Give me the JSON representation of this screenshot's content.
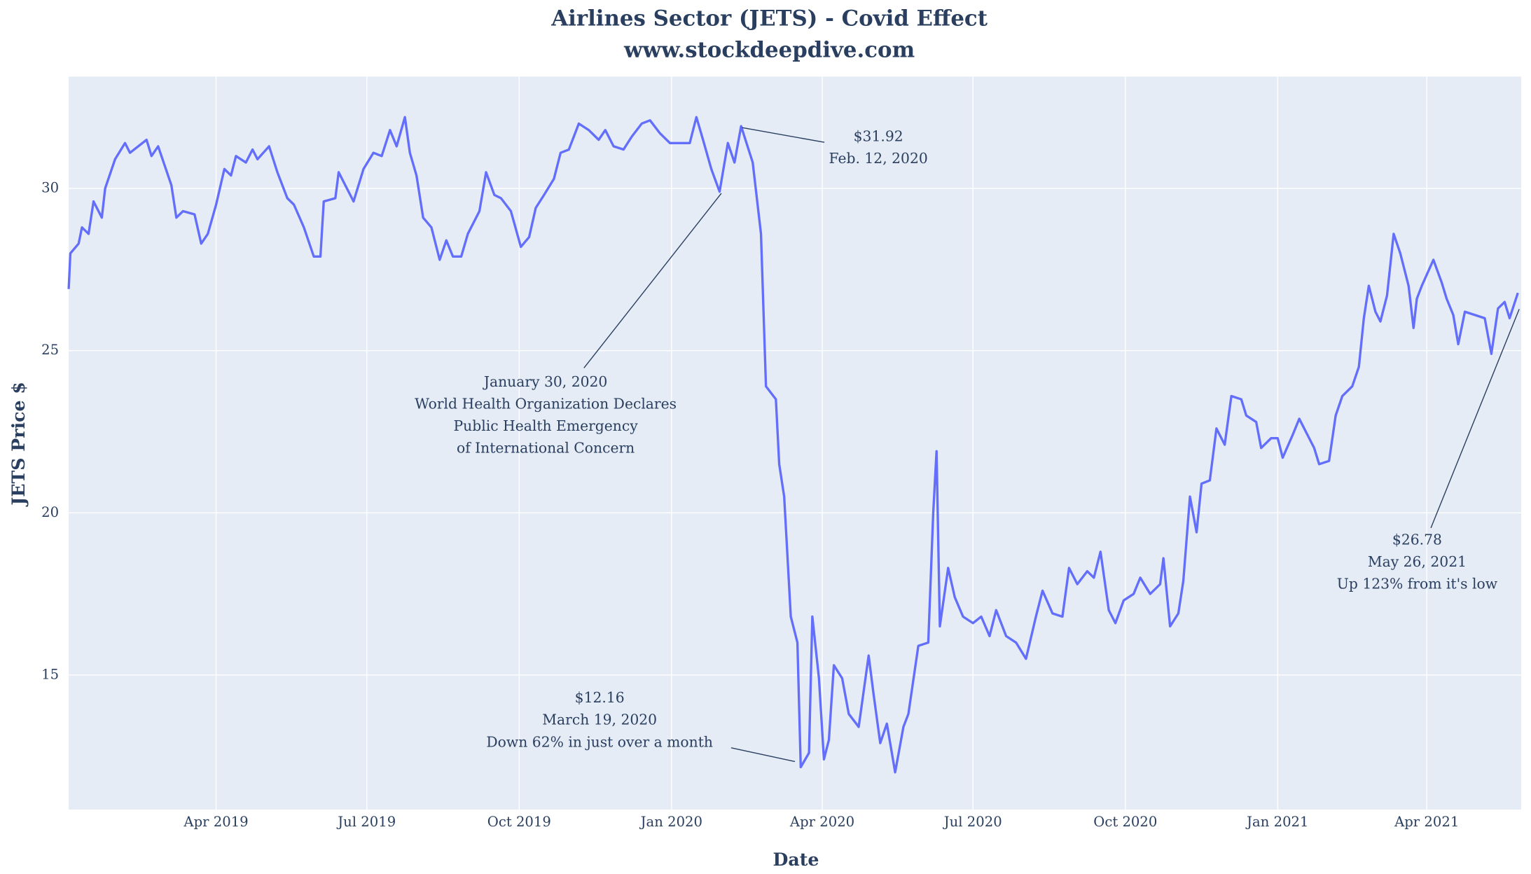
{
  "chart_data": {
    "type": "line",
    "title": [
      "Airlines Sector (JETS) - Covid Effect",
      "www.stockdeepdive.com"
    ],
    "x_label": "Date",
    "y_label": "JETS Price $",
    "color": "#636efa",
    "grid": true,
    "xlim": [
      "2019-01-02",
      "2021-05-28"
    ],
    "xticks": [
      {
        "value": "2019-04-01",
        "label": "Apr 2019"
      },
      {
        "value": "2019-07-01",
        "label": "Jul 2019"
      },
      {
        "value": "2019-10-01",
        "label": "Oct 2019"
      },
      {
        "value": "2020-01-01",
        "label": "Jan 2020"
      },
      {
        "value": "2020-04-01",
        "label": "Apr 2020"
      },
      {
        "value": "2020-07-01",
        "label": "Jul 2020"
      },
      {
        "value": "2020-10-01",
        "label": "Oct 2020"
      },
      {
        "value": "2021-01-01",
        "label": "Jan 2021"
      },
      {
        "value": "2021-04-01",
        "label": "Apr 2021"
      }
    ],
    "ylim": [
      10.85,
      33.45
    ],
    "yticks": [
      15,
      20,
      25,
      30
    ],
    "x": [
      "2019-01-02",
      "2019-01-03",
      "2019-01-08",
      "2019-01-10",
      "2019-01-14",
      "2019-01-17",
      "2019-01-22",
      "2019-01-24",
      "2019-01-30",
      "2019-02-05",
      "2019-02-08",
      "2019-02-18",
      "2019-02-21",
      "2019-02-25",
      "2019-03-05",
      "2019-03-08",
      "2019-03-12",
      "2019-03-19",
      "2019-03-23",
      "2019-03-27",
      "2019-04-01",
      "2019-04-06",
      "2019-04-10",
      "2019-04-13",
      "2019-04-19",
      "2019-04-23",
      "2019-04-26",
      "2019-05-03",
      "2019-05-08",
      "2019-05-14",
      "2019-05-18",
      "2019-05-24",
      "2019-05-30",
      "2019-06-03",
      "2019-06-05",
      "2019-06-12",
      "2019-06-14",
      "2019-06-18",
      "2019-06-23",
      "2019-06-29",
      "2019-07-05",
      "2019-07-10",
      "2019-07-15",
      "2019-07-19",
      "2019-07-24",
      "2019-07-27",
      "2019-07-31",
      "2019-08-04",
      "2019-08-09",
      "2019-08-14",
      "2019-08-18",
      "2019-08-22",
      "2019-08-27",
      "2019-08-31",
      "2019-09-07",
      "2019-09-11",
      "2019-09-16",
      "2019-09-20",
      "2019-09-26",
      "2019-10-02",
      "2019-10-07",
      "2019-10-11",
      "2019-10-16",
      "2019-10-22",
      "2019-10-26",
      "2019-10-31",
      "2019-11-06",
      "2019-11-12",
      "2019-11-18",
      "2019-11-22",
      "2019-11-27",
      "2019-12-03",
      "2019-12-08",
      "2019-12-14",
      "2019-12-19",
      "2019-12-25",
      "2019-12-31",
      "2020-01-06",
      "2020-01-12",
      "2020-01-16",
      "2020-01-20",
      "2020-01-25",
      "2020-01-30",
      "2020-02-04",
      "2020-02-08",
      "2020-02-12",
      "2020-02-19",
      "2020-02-24",
      "2020-02-27",
      "2020-03-04",
      "2020-03-06",
      "2020-03-09",
      "2020-03-13",
      "2020-03-17",
      "2020-03-19",
      "2020-03-24",
      "2020-03-26",
      "2020-03-30",
      "2020-04-02",
      "2020-04-05",
      "2020-04-08",
      "2020-04-13",
      "2020-04-17",
      "2020-04-23",
      "2020-04-29",
      "2020-05-02",
      "2020-05-06",
      "2020-05-10",
      "2020-05-15",
      "2020-05-20",
      "2020-05-23",
      "2020-05-29",
      "2020-06-04",
      "2020-06-07",
      "2020-06-09",
      "2020-06-11",
      "2020-06-16",
      "2020-06-20",
      "2020-06-25",
      "2020-07-01",
      "2020-07-06",
      "2020-07-11",
      "2020-07-15",
      "2020-07-21",
      "2020-07-27",
      "2020-08-02",
      "2020-08-08",
      "2020-08-12",
      "2020-08-18",
      "2020-08-24",
      "2020-08-28",
      "2020-09-02",
      "2020-09-08",
      "2020-09-12",
      "2020-09-16",
      "2020-09-21",
      "2020-09-25",
      "2020-09-30",
      "2020-10-06",
      "2020-10-10",
      "2020-10-16",
      "2020-10-22",
      "2020-10-24",
      "2020-10-28",
      "2020-11-02",
      "2020-11-05",
      "2020-11-09",
      "2020-11-13",
      "2020-11-16",
      "2020-11-21",
      "2020-11-25",
      "2020-11-30",
      "2020-12-04",
      "2020-12-10",
      "2020-12-13",
      "2020-12-19",
      "2020-12-22",
      "2020-12-28",
      "2021-01-01",
      "2021-01-04",
      "2021-01-10",
      "2021-01-14",
      "2021-01-18",
      "2021-01-23",
      "2021-01-26",
      "2021-02-01",
      "2021-02-05",
      "2021-02-09",
      "2021-02-15",
      "2021-02-19",
      "2021-02-22",
      "2021-02-25",
      "2021-03-01",
      "2021-03-04",
      "2021-03-08",
      "2021-03-12",
      "2021-03-16",
      "2021-03-21",
      "2021-03-24",
      "2021-03-26",
      "2021-03-29",
      "2021-04-05",
      "2021-04-10",
      "2021-04-13",
      "2021-04-17",
      "2021-04-20",
      "2021-04-24",
      "2021-04-30",
      "2021-05-06",
      "2021-05-10",
      "2021-05-14",
      "2021-05-18",
      "2021-05-21",
      "2021-05-26"
    ],
    "values": [
      26.9,
      28.0,
      28.3,
      28.8,
      28.6,
      29.6,
      29.1,
      30.0,
      30.9,
      31.4,
      31.1,
      31.5,
      31.0,
      31.3,
      30.1,
      29.1,
      29.3,
      29.2,
      28.3,
      28.6,
      29.5,
      30.6,
      30.4,
      31.0,
      30.8,
      31.2,
      30.9,
      31.3,
      30.5,
      29.7,
      29.5,
      28.8,
      27.9,
      27.9,
      29.6,
      29.7,
      30.5,
      30.1,
      29.6,
      30.6,
      31.1,
      31.0,
      31.8,
      31.3,
      32.2,
      31.1,
      30.4,
      29.1,
      28.8,
      27.8,
      28.4,
      27.9,
      27.9,
      28.6,
      29.3,
      30.5,
      29.8,
      29.7,
      29.3,
      28.2,
      28.5,
      29.4,
      29.8,
      30.3,
      31.1,
      31.2,
      32.0,
      31.8,
      31.5,
      31.8,
      31.3,
      31.2,
      31.6,
      32.0,
      32.1,
      31.7,
      31.4,
      31.4,
      31.4,
      32.2,
      31.5,
      30.6,
      29.9,
      31.4,
      30.8,
      31.92,
      30.8,
      28.6,
      23.9,
      23.5,
      21.5,
      20.5,
      16.8,
      16.0,
      12.16,
      12.6,
      16.8,
      14.9,
      12.4,
      13.0,
      15.3,
      14.9,
      13.8,
      13.4,
      15.6,
      14.4,
      12.9,
      13.5,
      12.0,
      13.4,
      13.8,
      15.9,
      16.0,
      20.0,
      21.9,
      16.5,
      18.3,
      17.4,
      16.8,
      16.6,
      16.8,
      16.2,
      17.0,
      16.2,
      16.0,
      15.5,
      16.8,
      17.6,
      16.9,
      16.8,
      18.3,
      17.8,
      18.2,
      18.0,
      18.8,
      17.0,
      16.6,
      17.3,
      17.5,
      18.0,
      17.5,
      17.8,
      18.6,
      16.5,
      16.9,
      17.9,
      20.5,
      19.4,
      20.9,
      21.0,
      22.6,
      22.1,
      23.6,
      23.5,
      23.0,
      22.8,
      22.0,
      22.3,
      22.3,
      21.7,
      22.4,
      22.9,
      22.5,
      22.0,
      21.5,
      21.6,
      23.0,
      23.6,
      23.9,
      24.5,
      26.0,
      27.0,
      26.2,
      25.9,
      26.7,
      28.6,
      28.0,
      27.0,
      25.7,
      26.6,
      27.0,
      27.8,
      27.1,
      26.6,
      26.1,
      25.2,
      26.2,
      26.1,
      26.0,
      24.9,
      26.3,
      26.5,
      26.0,
      26.78
    ],
    "annotations": [
      {
        "text": [
          "$31.92",
          "Feb. 12, 2020"
        ]
      },
      {
        "text": [
          "January 30, 2020",
          "World Health Organization Declares",
          "Public Health Emergency",
          "of International Concern"
        ]
      },
      {
        "text": [
          "$12.16",
          "March 19, 2020",
          "Down 62% in just over a month"
        ]
      },
      {
        "text": [
          "$26.78",
          "May 26, 2021",
          "Up 123% from it's low"
        ]
      }
    ]
  }
}
